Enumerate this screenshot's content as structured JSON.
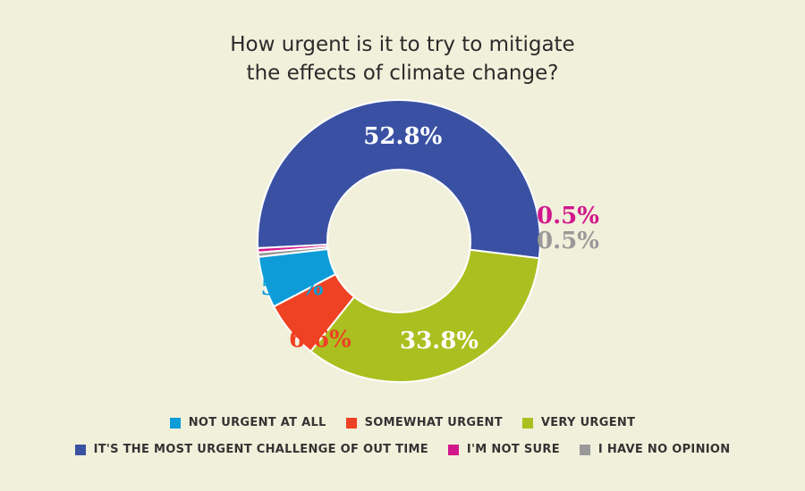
{
  "chart_data": {
    "type": "pie",
    "title": "How urgent is it to try to mitigate the effects of climate change?",
    "title_lines": [
      "How urgent is it to try to mitigate",
      "the effects of climate change?"
    ],
    "donut": true,
    "start_category": "IT'S THE MOST URGENT CHALLENGE OF OUT TIME",
    "direction": "counterclockwise",
    "categories": [
      "NOT URGENT AT ALL",
      "SOMEWHAT URGENT",
      "VERY URGENT",
      "IT'S THE MOST URGENT CHALLENGE OF OUT TIME",
      "I'M NOT SURE",
      "I HAVE NO OPINION"
    ],
    "values": [
      5.9,
      6.6,
      33.8,
      52.8,
      0.5,
      0.5
    ],
    "value_labels": [
      "5.9%",
      "6.6%",
      "33.8%",
      "52.8%",
      "0.5%",
      "0.5%"
    ],
    "colors": [
      "#0d9cd8",
      "#ef4123",
      "#abc020",
      "#3a51a3",
      "#d2178c",
      "#999999"
    ],
    "label_colors": [
      "#0d9cd8",
      "#ef4123",
      "#ffffff",
      "#ffffff",
      "#d2178c",
      "#999999"
    ],
    "legend_placement": "bottom",
    "legend_rows": [
      [
        0,
        1,
        2
      ],
      [
        3,
        4,
        5
      ]
    ]
  }
}
